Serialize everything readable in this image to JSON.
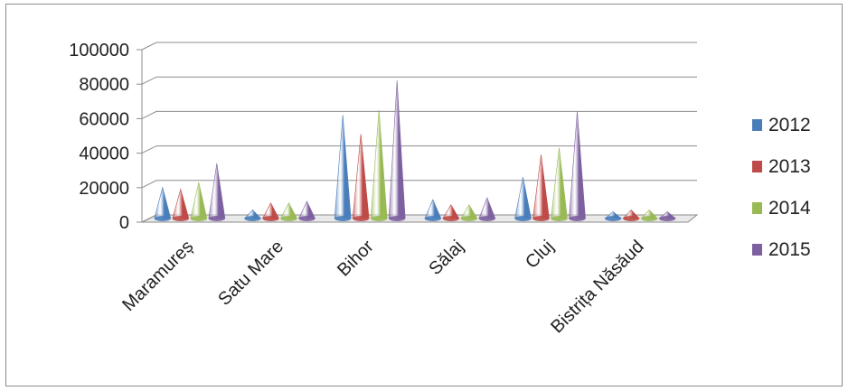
{
  "chart_data": {
    "type": "bar",
    "style": "3d-cone",
    "title": "",
    "xlabel": "",
    "ylabel": "",
    "ylim": [
      0,
      100000
    ],
    "yticks": [
      "0",
      "20000",
      "40000",
      "60000",
      "80000",
      "100000"
    ],
    "categories": [
      "Maramureș",
      "Satu Mare",
      "Bihor",
      "Sălaj",
      "Cluj",
      "Bistrița Năsăud"
    ],
    "series": [
      {
        "name": "2012",
        "color": "#4a7ebb",
        "values": [
          18000,
          5000,
          60000,
          11000,
          24000,
          4000
        ]
      },
      {
        "name": "2013",
        "color": "#be4b48",
        "values": [
          17000,
          9000,
          49000,
          8000,
          37000,
          5000
        ]
      },
      {
        "name": "2014",
        "color": "#98b954",
        "values": [
          21000,
          9000,
          63000,
          8000,
          41000,
          5000
        ]
      },
      {
        "name": "2015",
        "color": "#7d60a0",
        "values": [
          32000,
          10000,
          80000,
          12000,
          62000,
          4000
        ]
      }
    ],
    "grid": true,
    "legend_position": "right"
  }
}
